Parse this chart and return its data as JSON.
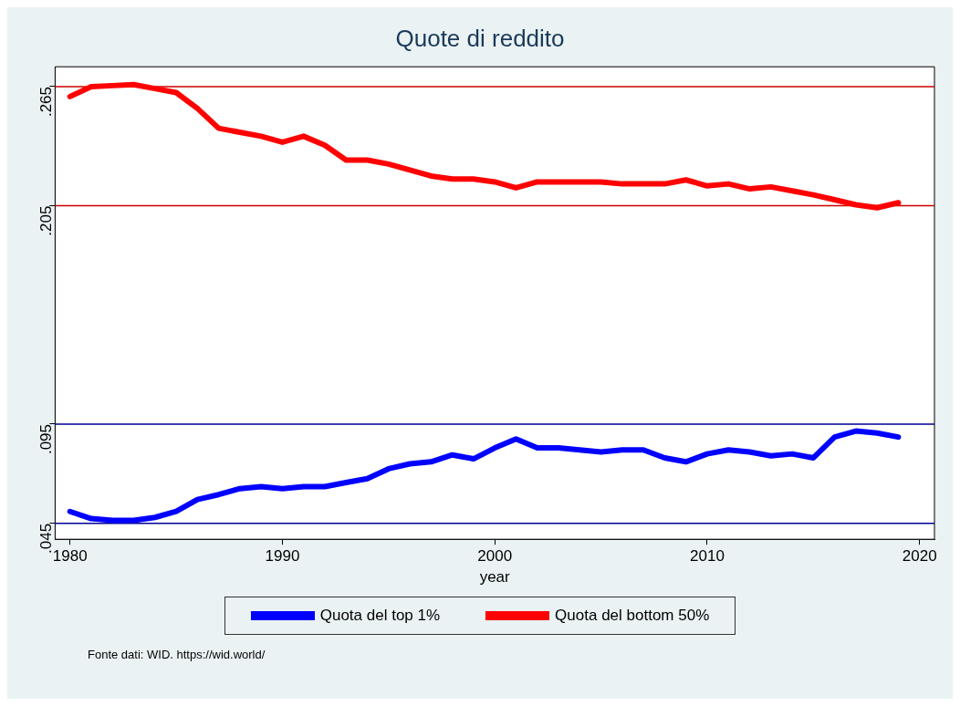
{
  "chart_data": {
    "type": "line",
    "title": "Quote di reddito",
    "xlabel": "year",
    "x": [
      1980,
      1981,
      1982,
      1983,
      1984,
      1985,
      1986,
      1987,
      1988,
      1989,
      1990,
      1991,
      1992,
      1993,
      1994,
      1995,
      1996,
      1997,
      1998,
      1999,
      2000,
      2001,
      2002,
      2003,
      2004,
      2005,
      2006,
      2007,
      2008,
      2009,
      2010,
      2011,
      2012,
      2013,
      2014,
      2015,
      2016,
      2017,
      2018,
      2019
    ],
    "series": [
      {
        "name": "Quota del top 1%",
        "color": "#0000ff",
        "values": [
          0.051,
          0.0474,
          0.0465,
          0.0465,
          0.048,
          0.051,
          0.057,
          0.0595,
          0.0625,
          0.0635,
          0.0625,
          0.0635,
          0.0635,
          0.0656,
          0.0675,
          0.0725,
          0.075,
          0.076,
          0.0795,
          0.0775,
          0.083,
          0.0875,
          0.083,
          0.083,
          0.082,
          0.081,
          0.082,
          0.082,
          0.078,
          0.076,
          0.08,
          0.082,
          0.081,
          0.079,
          0.08,
          0.078,
          0.0885,
          0.0915,
          0.0905,
          0.0885
        ]
      },
      {
        "name": "Quota del bottom 50%",
        "color": "#ff0000",
        "values": [
          0.26,
          0.265,
          0.2655,
          0.266,
          0.264,
          0.262,
          0.254,
          0.244,
          0.242,
          0.24,
          0.237,
          0.24,
          0.2355,
          0.228,
          0.228,
          0.226,
          0.223,
          0.22,
          0.2185,
          0.2185,
          0.217,
          0.214,
          0.217,
          0.217,
          0.217,
          0.217,
          0.216,
          0.216,
          0.216,
          0.218,
          0.215,
          0.216,
          0.2135,
          0.2145,
          0.2125,
          0.2105,
          0.208,
          0.2055,
          0.204,
          0.2065
        ]
      }
    ],
    "xlim": [
      1979.3,
      2020.7
    ],
    "xticks": [
      1980,
      1990,
      2000,
      2010,
      2020
    ],
    "ylim": [
      0.037,
      0.275
    ],
    "yticks": [
      {
        "value": 0.045,
        "label": ".045"
      },
      {
        "value": 0.095,
        "label": ".095"
      },
      {
        "value": 0.205,
        "label": ".205"
      },
      {
        "value": 0.265,
        "label": ".265"
      }
    ],
    "ref_lines": [
      {
        "axis": "y",
        "value": 0.265,
        "color": "#cc0000"
      },
      {
        "axis": "y",
        "value": 0.205,
        "color": "#cc0000"
      },
      {
        "axis": "y",
        "value": 0.095,
        "color": "#000099"
      },
      {
        "axis": "y",
        "value": 0.045,
        "color": "#000099"
      }
    ],
    "grid": false,
    "legend": "bottom",
    "marker": "none",
    "line_style": "solid",
    "annotations": [
      "Fonte dati: WID. https://wid.world/"
    ]
  }
}
